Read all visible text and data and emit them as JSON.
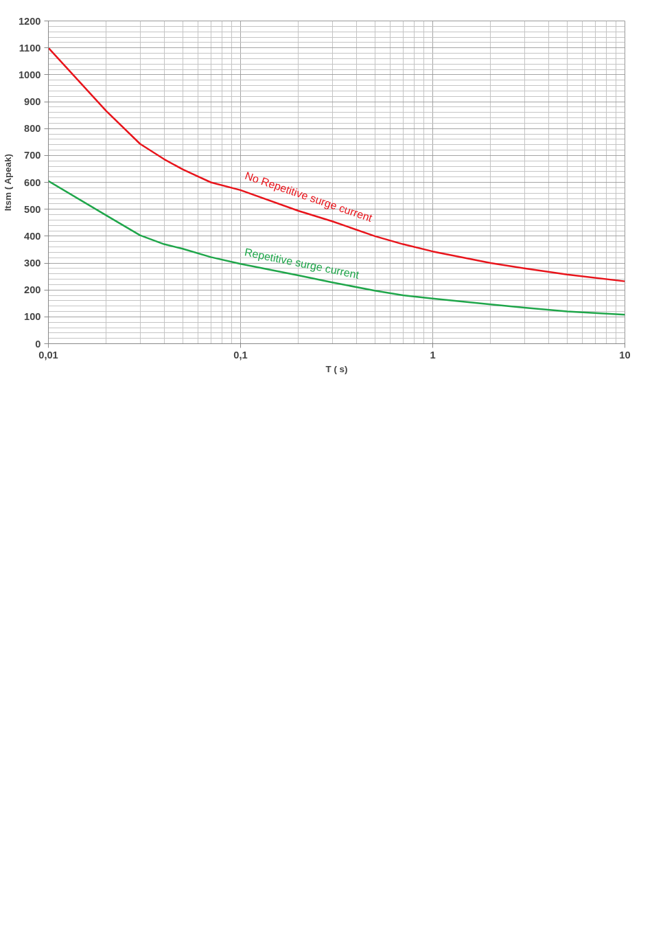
{
  "chart_data": {
    "type": "line",
    "xlabel": "T ( s)",
    "ylabel": "Itsm ( Apeak)",
    "x": [
      0.01,
      0.02,
      0.03,
      0.04,
      0.05,
      0.07,
      0.1,
      0.2,
      0.3,
      0.5,
      0.7,
      1,
      2,
      3,
      5,
      10
    ],
    "series": [
      {
        "name": "No Repetitive surge current",
        "color": "#e8141b",
        "values": [
          1100,
          865,
          743,
          686,
          648,
          600,
          571,
          494,
          455,
          400,
          370,
          343,
          300,
          280,
          257,
          232
        ]
      },
      {
        "name": "Repetitive surge current",
        "color": "#1fa64a",
        "values": [
          605,
          477,
          403,
          370,
          353,
          322,
          297,
          254,
          228,
          197,
          180,
          168,
          146,
          134,
          120,
          108
        ]
      }
    ],
    "log": "x",
    "xlim": [
      0.01,
      10
    ],
    "xticks": [
      {
        "value": 0.01,
        "label": "0,01"
      },
      {
        "value": 0.1,
        "label": "0,1"
      },
      1,
      10
    ],
    "ylim": [
      0,
      1200
    ],
    "yticks": [
      0,
      100,
      200,
      300,
      400,
      500,
      600,
      700,
      800,
      900,
      1000,
      1100,
      1200
    ],
    "grid": true,
    "legend": false,
    "marker": "none",
    "line_style": "solid"
  }
}
